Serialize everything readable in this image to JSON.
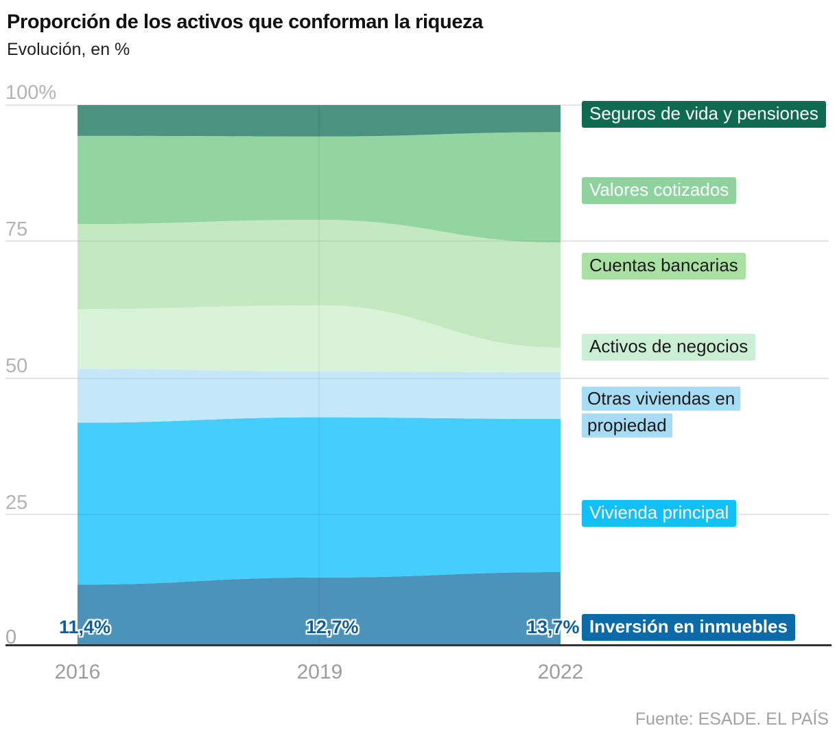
{
  "header": {
    "title": "Proporción de los activos que conforman la riqueza",
    "subtitle": "Evolución, en %"
  },
  "source": "Fuente: ESADE. EL PAÍS",
  "chart_data": {
    "type": "area",
    "stacked": true,
    "title": "Proporción de los activos que conforman la riqueza",
    "subtitle": "Evolución, en %",
    "x": [
      2016,
      2019,
      2022
    ],
    "x_labels": [
      "2016",
      "2019",
      "2022"
    ],
    "y_ticks": [
      "100%",
      "75",
      "50",
      "25",
      "0"
    ],
    "ylim": [
      0,
      100
    ],
    "grid": true,
    "series": [
      {
        "name": "Inversión en inmuebles",
        "color": "#4b93ba",
        "values": [
          11.4,
          12.7,
          13.7
        ]
      },
      {
        "name": "Vivienda principal",
        "color": "#45cefb",
        "values": [
          29.9,
          29.6,
          28.3
        ]
      },
      {
        "name": "Otras viviendas en propiedad",
        "color": "#c4e8f9",
        "values": [
          10.0,
          8.5,
          8.6
        ]
      },
      {
        "name": "Activos de negocios",
        "color": "#d9f3d8",
        "values": [
          11.0,
          12.2,
          4.6
        ]
      },
      {
        "name": "Cuentas bancarias",
        "color": "#c4e8bf",
        "values": [
          15.7,
          15.8,
          19.4
        ]
      },
      {
        "name": "Valores cotizados",
        "color": "#92d5a1",
        "values": [
          16.3,
          15.4,
          20.4
        ]
      },
      {
        "name": "Seguros de vida y pensiones",
        "color": "#4b9280",
        "values": [
          5.7,
          5.8,
          5.0
        ]
      }
    ],
    "value_labels": {
      "series": "Inversión en inmuebles",
      "values": [
        "11,4%",
        "12,7%",
        "13,7%"
      ]
    }
  },
  "legend": {
    "position": "right",
    "items": [
      {
        "label": "Seguros de vida y pensiones",
        "bg": "#0e6b52",
        "fg": "#ffffff"
      },
      {
        "label": "Valores cotizados",
        "bg": "#8ed39d",
        "fg": "#ffffff"
      },
      {
        "label": "Cuentas bancarias",
        "bg": "#a9e1a3",
        "fg": "#1b1b1b"
      },
      {
        "label": "Activos de negocios",
        "bg": "#caefd5",
        "fg": "#1b1b1b"
      },
      {
        "label": "Otras viviendas en propiedad",
        "bg": "#a6dcf4",
        "fg": "#1b1b1b"
      },
      {
        "label": "Vivienda principal",
        "bg": "#10c0f6",
        "fg": "#ffffff"
      },
      {
        "label": "Inversión en inmuebles",
        "bg": "#0a6ba8",
        "fg": "#ffffff"
      }
    ]
  }
}
